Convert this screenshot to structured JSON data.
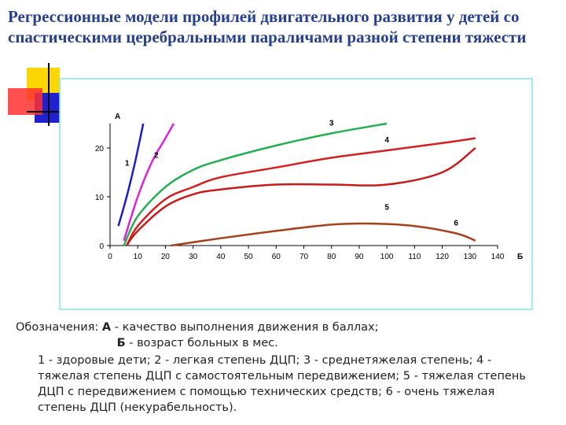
{
  "chart_data": {
    "type": "line",
    "title": "Регрессионные модели профилей двигательного развития у детей со спастическими церебральными параличами разной степени тяжести",
    "xlabel": "Б",
    "ylabel": "А",
    "xlim": [
      0,
      140
    ],
    "xticks": [
      0,
      10,
      20,
      30,
      40,
      50,
      60,
      70,
      80,
      90,
      100,
      110,
      120,
      130,
      140
    ],
    "ylim": [
      0,
      25
    ],
    "yticks": [
      0,
      10,
      20
    ],
    "series": [
      {
        "name": "1",
        "color": "#1c1ccc",
        "x": [
          3,
          6,
          9,
          12
        ],
        "values": [
          4,
          10,
          17,
          25
        ]
      },
      {
        "name": "2",
        "color": "#e020e0",
        "x": [
          5,
          10,
          15,
          20,
          23
        ],
        "values": [
          1,
          10,
          17,
          22,
          25
        ]
      },
      {
        "name": "3",
        "color": "#22b050",
        "x": [
          5,
          10,
          20,
          30,
          40,
          60,
          80,
          100
        ],
        "values": [
          0,
          6,
          12,
          15.5,
          17.5,
          20.5,
          23,
          25
        ]
      },
      {
        "name": "4",
        "color": "#d42020",
        "x": [
          6,
          10,
          20,
          30,
          40,
          60,
          80,
          100,
          120,
          132
        ],
        "values": [
          0,
          4,
          9.5,
          12,
          14,
          16,
          18,
          19.5,
          21,
          22
        ]
      },
      {
        "name": "5",
        "color": "#c81c1c",
        "x": [
          6,
          10,
          20,
          30,
          40,
          60,
          80,
          100,
          120,
          132
        ],
        "values": [
          0,
          3,
          8,
          10.5,
          11.5,
          12.5,
          12.5,
          12.5,
          15,
          20
        ]
      },
      {
        "name": "6",
        "color": "#a8401c",
        "x": [
          22,
          40,
          60,
          80,
          95,
          110,
          125,
          132
        ],
        "values": [
          0,
          1.5,
          3,
          4.3,
          4.5,
          4,
          2.5,
          1
        ]
      }
    ]
  },
  "notes": {
    "prefix": "Обозначения:",
    "a_key": "А",
    "a_text": "- качество выполнения движения в баллах;",
    "b_key": "Б",
    "b_text": "- возраст больных в мес.",
    "description": "1 - здоровые дети;  2 - легкая степень ДЦП;  3 - среднетяжелая степень; 4 - тяжелая степень ДЦП с самостоятельным передвижением;  5 - тяжелая степень ДЦП с передвижением с помощью технических средств;  6 - очень тяжелая степень ДЦП (некурабельность)."
  }
}
